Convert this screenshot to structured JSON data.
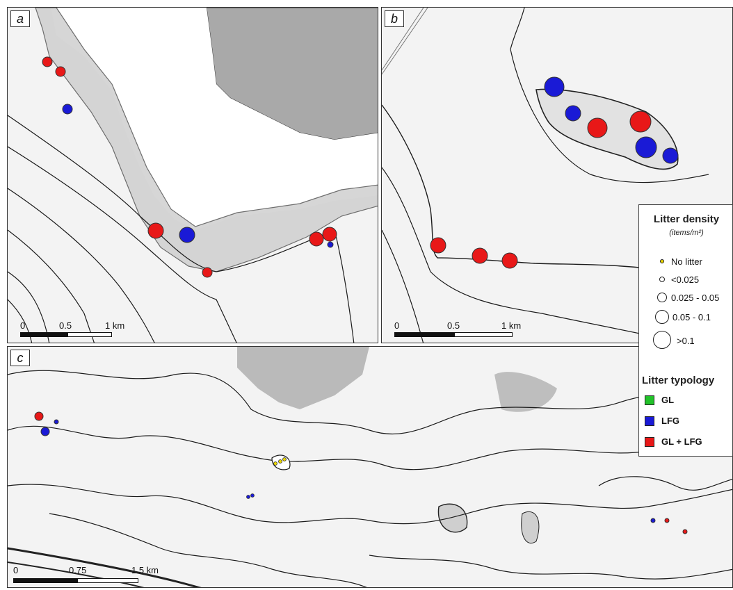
{
  "panels": {
    "a": {
      "label": "a",
      "scale": {
        "ticks": [
          "0",
          "0.5",
          "1 km"
        ]
      }
    },
    "b": {
      "label": "b",
      "scale": {
        "ticks": [
          "0",
          "0.5",
          "1 km"
        ]
      }
    },
    "c": {
      "label": "c",
      "scale": {
        "ticks": [
          "0",
          "0.75",
          "1.5 km"
        ]
      }
    }
  },
  "legend": {
    "density_title": "Litter density",
    "density_unit": "(items/m²)",
    "density_classes": [
      "No litter",
      "<0.025",
      "0.025 - 0.05",
      "0.05 - 0.1",
      ">0.1"
    ],
    "typology_title": "Litter typology",
    "typology_classes": [
      {
        "label": "GL",
        "color": "#22c22a"
      },
      {
        "label": "LFG",
        "color": "#1a1ad6"
      },
      {
        "label": "GL + LFG",
        "color": "#e81818"
      }
    ]
  },
  "colors": {
    "land": "#a9a9a9",
    "water": "#f3f3f3",
    "contour": "#1b1b1b",
    "no_litter": "#e8d400"
  }
}
